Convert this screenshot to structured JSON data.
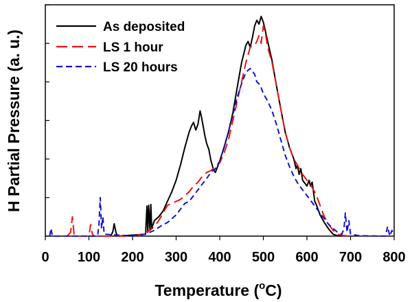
{
  "chart_data": {
    "type": "line",
    "title": "",
    "xlabel": "Temperature (",
    "xlabel_sup": "o",
    "xlabel_end": "C)",
    "ylabel": "H Partial Pressure  (a. u.)",
    "xlim": [
      0,
      800
    ],
    "ylim": [
      0,
      6
    ],
    "x_ticks": [
      0,
      100,
      200,
      300,
      400,
      500,
      600,
      700,
      800
    ],
    "x_tick_labels": [
      "0",
      "100",
      "200",
      "300",
      "400",
      "500",
      "600",
      "700",
      "800"
    ],
    "y_tick_values": [
      0,
      1,
      2,
      3,
      4,
      5,
      6
    ],
    "y_tick_labels_shown": false,
    "legend_position": "top-left",
    "series": [
      {
        "name": "As deposited",
        "color": "#000000",
        "style": "solid",
        "x": [
          150,
          155,
          158,
          162,
          165,
          230,
          233,
          235,
          237,
          240,
          242,
          244,
          250,
          260,
          270,
          280,
          290,
          300,
          310,
          320,
          330,
          335,
          340,
          345,
          350,
          355,
          358,
          362,
          366,
          370,
          375,
          380,
          385,
          390,
          400,
          410,
          420,
          430,
          440,
          450,
          460,
          465,
          470,
          475,
          480,
          485,
          490,
          495,
          500,
          505,
          510,
          520,
          530,
          540,
          550,
          560,
          570,
          575,
          578,
          582,
          586,
          590,
          600,
          605,
          608,
          612,
          618,
          622,
          630,
          640,
          650,
          660,
          670,
          680
        ],
        "y": [
          0,
          0.12,
          0.32,
          0.1,
          0,
          0.05,
          0.78,
          0.1,
          0.8,
          0.15,
          0.82,
          0.2,
          0.4,
          0.5,
          0.65,
          0.9,
          1.15,
          1.45,
          1.85,
          2.3,
          2.7,
          2.85,
          2.95,
          2.75,
          2.9,
          3.25,
          3.1,
          2.85,
          2.6,
          2.4,
          2.25,
          1.95,
          1.75,
          1.65,
          1.95,
          2.3,
          2.7,
          3.2,
          3.85,
          4.5,
          4.95,
          5.05,
          4.9,
          5.15,
          5.45,
          5.6,
          5.5,
          5.7,
          5.55,
          5.3,
          5.05,
          4.55,
          3.9,
          3.3,
          2.7,
          2.3,
          2.0,
          1.75,
          1.85,
          1.6,
          1.75,
          1.45,
          1.3,
          1.45,
          1.3,
          1.4,
          0.9,
          0.8,
          0.55,
          0.35,
          0.18,
          0.05,
          0.01,
          0
        ]
      },
      {
        "name": "LS 1 hour",
        "color": "#ee1111",
        "style": "dash-long",
        "x": [
          50,
          58,
          62,
          66,
          70,
          100,
          104,
          108,
          112,
          200,
          220,
          240,
          250,
          260,
          270,
          280,
          290,
          300,
          310,
          320,
          330,
          340,
          350,
          360,
          370,
          380,
          390,
          400,
          410,
          420,
          430,
          440,
          450,
          460,
          470,
          480,
          485,
          490,
          495,
          500,
          505,
          510,
          520,
          530,
          540,
          550,
          560,
          570,
          580,
          590,
          600,
          610,
          620,
          630,
          640,
          650,
          660,
          670,
          680,
          690,
          700
        ],
        "y": [
          0,
          0.1,
          0.5,
          0.05,
          0,
          0,
          0.3,
          0.05,
          0,
          0,
          0.05,
          0.15,
          0.25,
          0.4,
          0.6,
          0.8,
          0.85,
          0.9,
          0.95,
          1.05,
          1.15,
          1.3,
          1.4,
          1.55,
          1.65,
          1.7,
          1.8,
          1.9,
          2.15,
          2.5,
          3.0,
          3.5,
          4.0,
          4.5,
          4.9,
          4.95,
          5.05,
          5.2,
          5.0,
          5.45,
          5.25,
          4.9,
          4.5,
          3.9,
          3.3,
          2.7,
          2.3,
          2.0,
          1.8,
          1.6,
          1.45,
          1.3,
          1.1,
          0.8,
          0.5,
          0.3,
          0.15,
          0.05,
          0.02,
          0.01,
          0
        ]
      },
      {
        "name": "LS 20 hours",
        "color": "#1111cc",
        "style": "dash-short",
        "x": [
          10,
          13,
          16,
          20,
          120,
          123,
          126,
          129,
          132,
          135,
          200,
          230,
          250,
          270,
          280,
          290,
          300,
          310,
          320,
          330,
          340,
          350,
          360,
          370,
          380,
          390,
          400,
          410,
          420,
          430,
          440,
          450,
          460,
          470,
          480,
          485,
          490,
          495,
          500,
          510,
          520,
          530,
          540,
          550,
          560,
          570,
          580,
          590,
          600,
          610,
          620,
          630,
          640,
          650,
          660,
          670,
          680,
          685,
          688,
          692,
          696,
          700,
          720,
          780,
          785,
          790,
          795,
          800
        ],
        "y": [
          0,
          0.2,
          0,
          0,
          0,
          0.3,
          1.0,
          0.2,
          0.5,
          0.05,
          0,
          0.05,
          0.15,
          0.3,
          0.35,
          0.45,
          0.55,
          0.7,
          0.85,
          0.9,
          1.05,
          1.2,
          1.35,
          1.5,
          1.65,
          1.75,
          1.95,
          2.3,
          2.7,
          3.15,
          3.6,
          3.95,
          4.25,
          4.35,
          4.2,
          4.0,
          3.95,
          3.85,
          3.7,
          3.5,
          3.25,
          2.9,
          2.5,
          2.1,
          1.8,
          1.55,
          1.35,
          1.2,
          1.05,
          0.9,
          0.75,
          0.6,
          0.45,
          0.3,
          0.2,
          0.1,
          0.05,
          0.2,
          0.6,
          0.1,
          0.4,
          0.05,
          0.01,
          0,
          0.25,
          0,
          0.15,
          0
        ]
      }
    ]
  }
}
